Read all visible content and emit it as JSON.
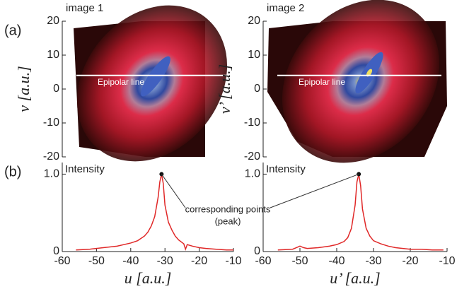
{
  "chart_data": [
    {
      "type": "image",
      "panel": "(a)",
      "title": "image 1",
      "ylabel": "v [a.u.]",
      "ylim": [
        -20,
        20
      ],
      "yticks": [
        -20,
        -10,
        0,
        10,
        20
      ],
      "xlim": [
        -60,
        -10
      ],
      "epipolar_v": 4,
      "epipolar_label": "Epipolar line",
      "center": [
        -31,
        4
      ]
    },
    {
      "type": "image",
      "title": "image 2",
      "ylabel": "v’ [a.u.]",
      "ylim": [
        -20,
        20
      ],
      "yticks": [
        -20,
        -10,
        0,
        10,
        20
      ],
      "xlim": [
        -60,
        -10
      ],
      "epipolar_v": 4,
      "epipolar_label": "Epipolar line",
      "center": [
        -34,
        5
      ]
    },
    {
      "type": "line",
      "panel": "(b)",
      "title": "Intensity",
      "xlabel": "u [a.u.]",
      "xlim": [
        -60,
        -10
      ],
      "xticks": [
        -60,
        -50,
        -40,
        -30,
        -20,
        -10
      ],
      "ylim": [
        0,
        1.15
      ],
      "yticks": [
        0,
        {
          "value": 1,
          "label": "1.0"
        }
      ],
      "series": [
        {
          "color": "#e02828",
          "x": [
            -56,
            -52,
            -48,
            -44,
            -40,
            -38,
            -36,
            -35,
            -34,
            -33,
            -32,
            -31.5,
            -31,
            -30.5,
            -30,
            -29,
            -28,
            -27,
            -26,
            -24.5,
            -24,
            -23.5,
            -22,
            -20,
            -18,
            -15,
            -12,
            -10
          ],
          "values": [
            0.02,
            0.03,
            0.05,
            0.07,
            0.11,
            0.14,
            0.2,
            0.25,
            0.33,
            0.45,
            0.7,
            0.9,
            1.0,
            0.88,
            0.6,
            0.38,
            0.28,
            0.2,
            0.15,
            0.1,
            0.03,
            0.09,
            0.07,
            0.05,
            0.04,
            0.03,
            0.02,
            0.02
          ]
        }
      ],
      "peak": [
        -31,
        1
      ],
      "annotation": [
        "corresponding points",
        "(peak)"
      ]
    },
    {
      "type": "line",
      "title": "Intensity",
      "xlabel": "u’ [a.u.]",
      "xlim": [
        -60,
        -10
      ],
      "xticks": [
        -60,
        -50,
        -40,
        -30,
        -20,
        -10
      ],
      "ylim": [
        0,
        1.15
      ],
      "yticks": [
        0,
        {
          "value": 1,
          "label": "1.0"
        }
      ],
      "series": [
        {
          "color": "#e02828",
          "x": [
            -56,
            -52,
            -51,
            -50,
            -49,
            -48,
            -45,
            -42,
            -40,
            -38,
            -37,
            -36,
            -35,
            -34.5,
            -34,
            -33.5,
            -33,
            -32,
            -31,
            -30,
            -28,
            -26,
            -24,
            -22,
            -20,
            -17,
            -14,
            -11
          ],
          "values": [
            0.02,
            0.03,
            0.05,
            0.07,
            0.05,
            0.04,
            0.05,
            0.07,
            0.09,
            0.13,
            0.18,
            0.3,
            0.6,
            0.9,
            1.0,
            0.85,
            0.55,
            0.3,
            0.2,
            0.14,
            0.1,
            0.07,
            0.05,
            0.04,
            0.03,
            0.03,
            0.02,
            0.02
          ]
        }
      ],
      "peak": [
        -34,
        1
      ]
    }
  ]
}
